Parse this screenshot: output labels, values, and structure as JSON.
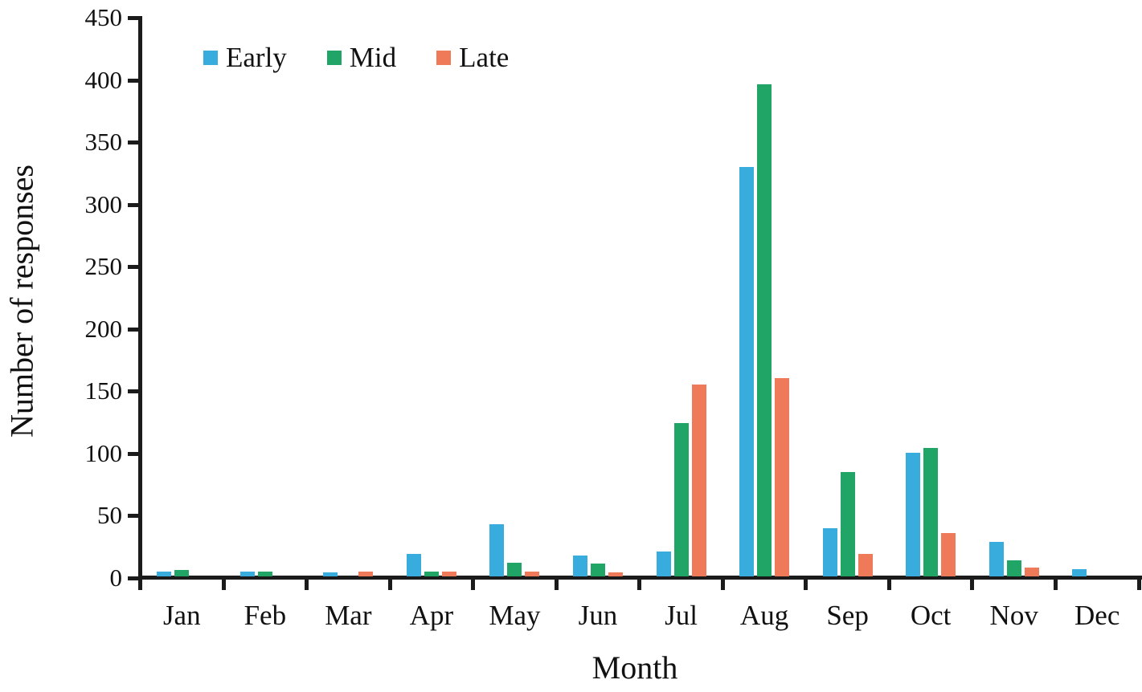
{
  "chart_data": {
    "type": "bar",
    "title": "",
    "xlabel": "Month",
    "ylabel": "Number of responses",
    "categories": [
      "Jan",
      "Feb",
      "Mar",
      "Apr",
      "May",
      "Jun",
      "Jul",
      "Aug",
      "Sep",
      "Oct",
      "Nov",
      "Dec"
    ],
    "series": [
      {
        "name": "Early",
        "color": "#38ADDD",
        "values": [
          4,
          4,
          3,
          18,
          42,
          17,
          20,
          329,
          39,
          99,
          28,
          6
        ]
      },
      {
        "name": "Mid",
        "color": "#20A566",
        "values": [
          5,
          4,
          0,
          4,
          11,
          10,
          123,
          395,
          84,
          103,
          13,
          0
        ]
      },
      {
        "name": "Late",
        "color": "#EF7A5A",
        "values": [
          0,
          0,
          4,
          4,
          4,
          3,
          154,
          159,
          18,
          35,
          7,
          0
        ]
      }
    ],
    "ylim": [
      0,
      450
    ],
    "yticks": [
      0,
      50,
      100,
      150,
      200,
      250,
      300,
      350,
      400,
      450
    ],
    "grid": false,
    "legend_position": "top-left-inside",
    "axis_color": "#1b1b1b",
    "text_color": "#111111",
    "background": "#ffffff"
  }
}
